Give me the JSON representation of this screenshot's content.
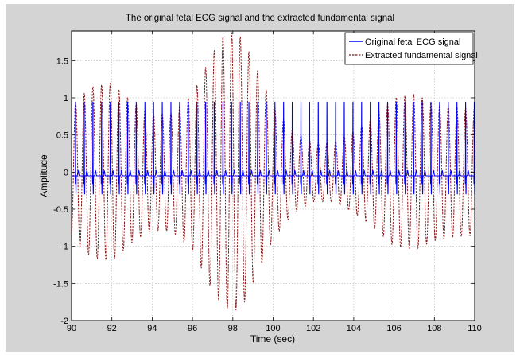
{
  "chart_data": {
    "type": "line",
    "title": "The original fetal ECG signal and the extracted fundamental signal",
    "xlabel": "Time (sec)",
    "ylabel": "Amplitude",
    "xlim": [
      90,
      110
    ],
    "ylim": [
      -2,
      1.9
    ],
    "xticks": [
      90,
      92,
      94,
      96,
      98,
      100,
      102,
      104,
      106,
      108,
      110
    ],
    "yticks": [
      -2,
      -1.5,
      -1,
      -0.5,
      0,
      0.5,
      1,
      1.5
    ],
    "grid": true,
    "legend": {
      "position": "top-right"
    },
    "series": [
      {
        "name": "Original fetal ECG signal",
        "color": "#0000ff",
        "style": "solid",
        "beat_period_sec": 0.43,
        "first_beat_sec": 90.2,
        "r_peak": 0.95,
        "baseline": -0.05,
        "s_wave_min": -0.3
      },
      {
        "name": "Extracted fundamental signal",
        "color": "#8b1a1a",
        "style": "dashed",
        "period_sec": 0.43,
        "envelope": {
          "t": [
            90,
            91,
            92,
            93,
            94,
            95,
            96,
            97,
            97.5,
            98,
            98.5,
            99,
            100,
            101,
            102,
            103,
            104,
            105,
            106,
            107,
            108,
            109,
            110
          ],
          "amplitude": [
            0.9,
            1.15,
            1.2,
            0.95,
            0.78,
            0.8,
            1.05,
            1.6,
            1.82,
            1.88,
            1.8,
            1.5,
            0.9,
            0.55,
            0.4,
            0.4,
            0.55,
            0.75,
            1.0,
            1.05,
            0.92,
            0.88,
            0.85
          ]
        }
      }
    ]
  }
}
